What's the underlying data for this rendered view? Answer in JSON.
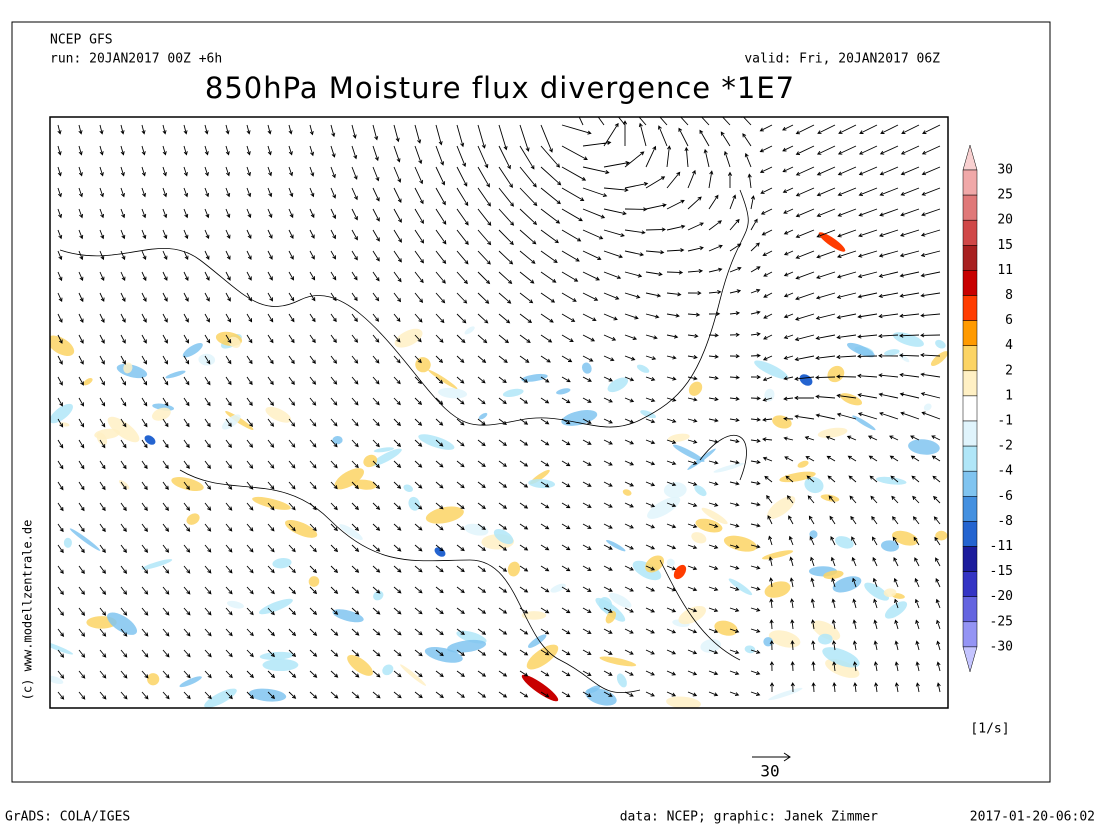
{
  "header": {
    "model": "NCEP GFS",
    "run": "run: 20JAN2017 00Z +6h",
    "valid": "valid: Fri, 20JAN2017 06Z",
    "title": "850hPa Moisture flux divergence *1E7"
  },
  "colorbar": {
    "labels": [
      30,
      25,
      20,
      15,
      11,
      8,
      6,
      4,
      2,
      1,
      -1,
      -2,
      -4,
      -6,
      -8,
      -11,
      -15,
      -20,
      -25,
      -30
    ],
    "colors": [
      "#f8d0d0",
      "#f0a8a8",
      "#e07878",
      "#d04848",
      "#a82020",
      "#c80000",
      "#ff3c00",
      "#ff9a00",
      "#fcd464",
      "#fff0c4",
      "#ffffff",
      "#e0f4fc",
      "#b0e6f8",
      "#80c4f0",
      "#4490e0",
      "#2464d0",
      "#1c1c9c",
      "#3434c4",
      "#6464e0",
      "#9494f4",
      "#c4c4ff"
    ],
    "unit": "[1/s]"
  },
  "vector_scale": "30",
  "credit": "(c) www.modellzentrale.de",
  "footer": {
    "left": "GrADS: COLA/IGES",
    "center": "data: NCEP; graphic: Janek Zimmer",
    "right": "2017-01-20-06:02"
  }
}
